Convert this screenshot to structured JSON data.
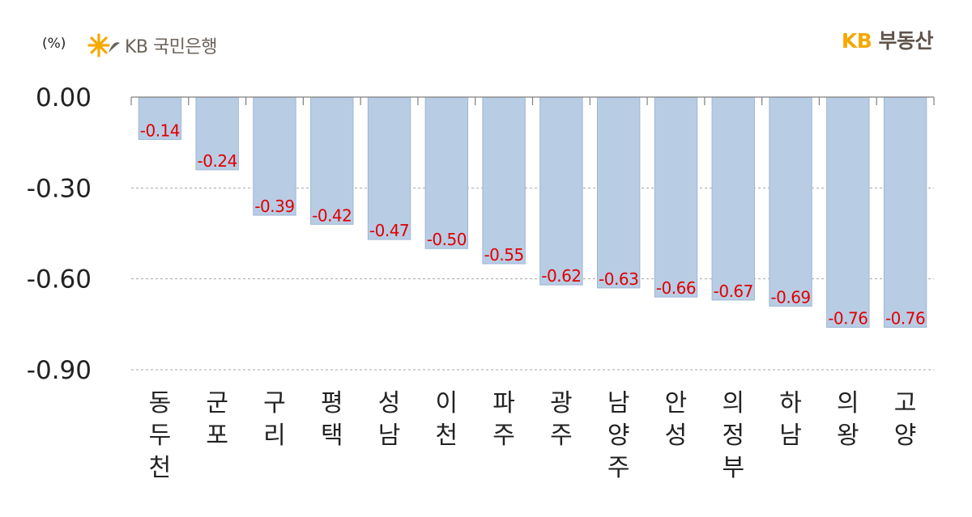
{
  "header": {
    "unit_label": "(%)",
    "bank_logo_text": "KB 국민은행",
    "brand_kb": "KB",
    "brand_name": "부동산"
  },
  "colors": {
    "bar": "#b8cce4",
    "bar_edge": "#9eb6d4",
    "label": "#e00000",
    "axis": "#7f7f7f",
    "grid": "#a6a6a6",
    "kb_yellow": "#f5a800"
  },
  "chart_data": {
    "type": "bar",
    "categories": [
      "동두천",
      "군포",
      "구리",
      "평택",
      "성남",
      "이천",
      "파주",
      "광주",
      "남양주",
      "안성",
      "의정부",
      "하남",
      "의왕",
      "고양"
    ],
    "values": [
      -0.14,
      -0.24,
      -0.39,
      -0.42,
      -0.47,
      -0.5,
      -0.55,
      -0.62,
      -0.63,
      -0.66,
      -0.67,
      -0.69,
      -0.76,
      -0.76
    ],
    "value_labels": [
      "-0.14",
      "-0.24",
      "-0.39",
      "-0.42",
      "-0.47",
      "-0.50",
      "-0.55",
      "-0.62",
      "-0.63",
      "-0.66",
      "-0.67",
      "-0.69",
      "-0.76",
      "-0.76"
    ],
    "ylim": [
      -0.9,
      0
    ],
    "yticks": [
      0,
      -0.3,
      -0.6,
      -0.9
    ],
    "ytick_labels": [
      "0.00",
      "-0.30",
      "-0.60",
      "-0.90"
    ],
    "grid": "dashed horizontal",
    "xlabel": "",
    "ylabel": "",
    "title": ""
  }
}
